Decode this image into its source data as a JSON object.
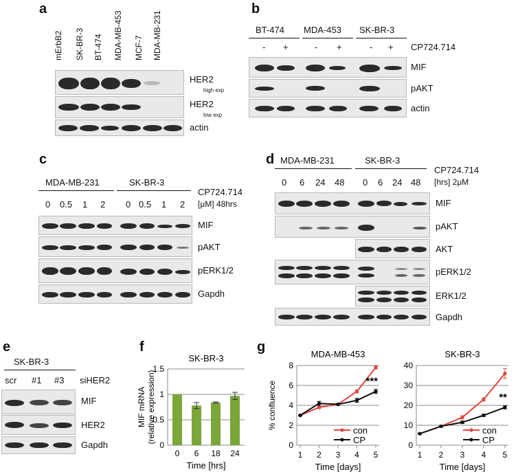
{
  "panels": {
    "a": {
      "label": "a",
      "lanes": [
        "mErbB2",
        "SK-BR-3",
        "BT-474",
        "MDA-MB-453",
        "MCF-7",
        "MDA-MB-231"
      ],
      "rows": {
        "her2_high": "HER2",
        "her2_high_sub": "high exp",
        "her2_low": "HER2",
        "her2_low_sub": "low exp",
        "actin": "actin"
      }
    },
    "b": {
      "label": "b",
      "groups": [
        "BT-474",
        "MDA-453",
        "SK-BR-3"
      ],
      "signs": [
        "-",
        "+",
        "-",
        "+",
        "-",
        "+"
      ],
      "treatment": "CP724.714",
      "rows": {
        "mif": "MIF",
        "pakt": "pAKT",
        "actin": "actin"
      }
    },
    "c": {
      "label": "c",
      "groups": [
        "MDA-MB-231",
        "SK-BR-3"
      ],
      "doses": [
        "0",
        "0.5",
        "1",
        "2",
        "0",
        "0.5",
        "1",
        "2"
      ],
      "treatment": "CP724.714",
      "treatment_sub": "[μM] 48hrs",
      "rows": {
        "mif": "MIF",
        "pakt": "pAKT",
        "perk": "pERK1/2",
        "gapdh": "Gapdh"
      }
    },
    "d": {
      "label": "d",
      "groups": [
        "MDA-MB-231",
        "SK-BR-3"
      ],
      "times": [
        "0",
        "6",
        "24",
        "48",
        "0",
        "6",
        "24",
        "48"
      ],
      "treatment": "CP724.714",
      "treatment_sub": "[hrs] 2μM",
      "rows": {
        "mif": "MIF",
        "pakt": "pAKT",
        "akt": "AKT",
        "perk": "pERK1/2",
        "erk": "ERK1/2",
        "gapdh": "Gapdh"
      }
    },
    "e": {
      "label": "e",
      "group": "SK-BR-3",
      "lanes": [
        "scr",
        "#1",
        "#3"
      ],
      "treatment": "siHER2",
      "rows": {
        "mif": "MIF",
        "her2": "HER2",
        "gapdh": "Gapdh"
      }
    },
    "f": {
      "label": "f"
    },
    "g": {
      "label": "g"
    }
  },
  "colors": {
    "con": "#e0473f",
    "cp": "#111111",
    "bar": "#7aa63a"
  },
  "chart_data": [
    {
      "id": "f",
      "type": "bar",
      "title": "SK-BR-3",
      "xlabel": "Time [hrs]",
      "ylabel": "MIF mRNA (relative expression)",
      "categories": [
        "0",
        "6",
        "18",
        "24"
      ],
      "values": [
        1.0,
        0.78,
        0.84,
        0.97
      ],
      "errors": [
        0.0,
        0.06,
        0.01,
        0.07
      ],
      "ylim": [
        0,
        1.5
      ],
      "yticks": [
        "0",
        "0.5",
        "1",
        "1.5"
      ],
      "grid": true
    },
    {
      "id": "g1",
      "type": "line",
      "title": "MDA-MB-453",
      "xlabel": "Time [days]",
      "ylabel": "% confluence",
      "x": [
        1,
        2,
        3,
        4,
        5
      ],
      "ylim": [
        0,
        8
      ],
      "yticks": [
        "0",
        "2",
        "4",
        "6",
        "8"
      ],
      "series": [
        {
          "name": "con",
          "values": [
            3.0,
            3.8,
            4.1,
            5.4,
            7.8
          ],
          "errors": [
            0.05,
            0.1,
            0.1,
            0.15,
            0.15
          ]
        },
        {
          "name": "CP",
          "values": [
            3.0,
            4.2,
            4.1,
            4.5,
            5.4
          ],
          "errors": [
            0.05,
            0.2,
            0.1,
            0.2,
            0.2
          ]
        }
      ],
      "annotation": "***",
      "legend_position": "bottom-right"
    },
    {
      "id": "g2",
      "type": "line",
      "title": "SK-BR-3",
      "xlabel": "Time [days]",
      "ylabel": "",
      "x": [
        1,
        2,
        3,
        4,
        5
      ],
      "ylim": [
        0,
        40
      ],
      "yticks": [
        "0",
        "10",
        "20",
        "30",
        "40"
      ],
      "series": [
        {
          "name": "con",
          "values": [
            5.8,
            9.5,
            14.0,
            23.0,
            36.0
          ],
          "errors": [
            0.3,
            0.4,
            0.8,
            0.8,
            2.5
          ]
        },
        {
          "name": "CP",
          "values": [
            5.8,
            9.5,
            11.5,
            15.0,
            19.0
          ],
          "errors": [
            0.3,
            0.4,
            0.6,
            0.6,
            0.8
          ]
        }
      ],
      "annotation": "**",
      "legend_position": "bottom-right"
    }
  ]
}
